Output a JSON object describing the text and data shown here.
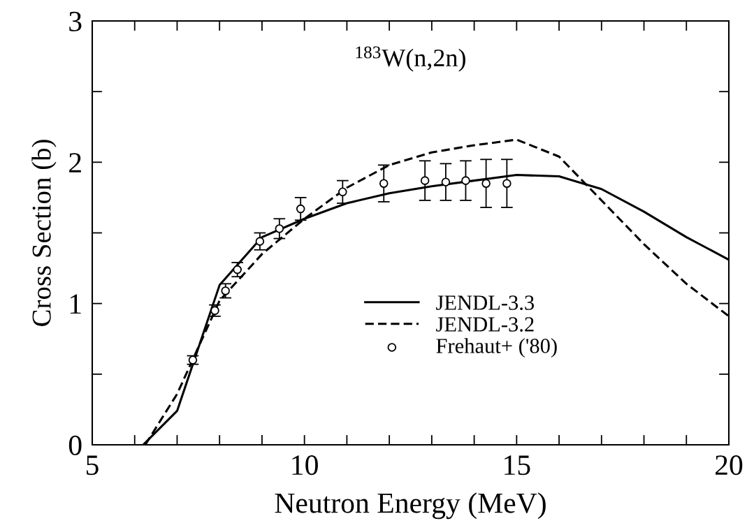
{
  "chart_data": {
    "type": "line",
    "xlabel": "Neutron Energy (MeV)",
    "ylabel": "Cross Section (b)",
    "annotations": [
      "$^{183}$W(n,2n)"
    ],
    "xlim": [
      5,
      20
    ],
    "ylim": [
      0,
      3
    ],
    "xticks": [
      5,
      {
        "value": 6,
        "label": null
      },
      {
        "value": 7,
        "label": null
      },
      {
        "value": 8,
        "label": null
      },
      {
        "value": 9,
        "label": null
      },
      10,
      {
        "value": 11,
        "label": null
      },
      {
        "value": 12,
        "label": null
      },
      {
        "value": 13,
        "label": null
      },
      {
        "value": 14,
        "label": null
      },
      15,
      {
        "value": 16,
        "label": null
      },
      {
        "value": 17,
        "label": null
      },
      {
        "value": 18,
        "label": null
      },
      {
        "value": 19,
        "label": null
      },
      20
    ],
    "yticks": [
      0,
      {
        "value": 0.5,
        "label": null
      },
      1,
      {
        "value": 1.5,
        "label": null
      },
      2,
      {
        "value": 2.5,
        "label": null
      },
      3
    ],
    "grid": false,
    "legend": "center",
    "series": [
      {
        "name": "JENDL-3.3",
        "color": "#000000",
        "line_style": "solid",
        "marker": "none",
        "x": [
          6.2,
          7.0,
          8.0,
          9.0,
          10,
          11,
          12,
          13,
          14,
          15,
          16,
          17,
          18,
          19,
          20
        ],
        "values": [
          0,
          0.24,
          1.13,
          1.47,
          1.6,
          1.71,
          1.78,
          1.83,
          1.87,
          1.91,
          1.9,
          1.81,
          1.65,
          1.47,
          1.31
        ]
      },
      {
        "name": "JENDL-3.2",
        "color": "#000000",
        "line_style": "dashed",
        "marker": "none",
        "x": [
          6.25,
          7.0,
          8.0,
          9.0,
          10,
          11,
          12,
          13,
          14,
          15,
          16,
          17,
          18,
          19,
          20
        ],
        "values": [
          0,
          0.36,
          1.02,
          1.35,
          1.6,
          1.82,
          1.98,
          2.07,
          2.12,
          2.16,
          2.04,
          1.73,
          1.42,
          1.14,
          0.91
        ]
      },
      {
        "name": "Frehaut+ ('80)",
        "type": "scatter",
        "color": "#000000",
        "marker": "circle",
        "x": [
          7.37,
          7.89,
          8.14,
          8.42,
          8.95,
          9.41,
          9.91,
          10.9,
          11.87,
          12.84,
          13.33,
          13.8,
          14.28,
          14.77
        ],
        "values": [
          0.6,
          0.95,
          1.09,
          1.24,
          1.44,
          1.53,
          1.67,
          1.79,
          1.85,
          1.87,
          1.86,
          1.87,
          1.85,
          1.85
        ],
        "errors": [
          0.03,
          0.04,
          0.05,
          0.05,
          0.06,
          0.07,
          0.08,
          0.08,
          0.13,
          0.14,
          0.13,
          0.14,
          0.17,
          0.17
        ]
      }
    ]
  }
}
